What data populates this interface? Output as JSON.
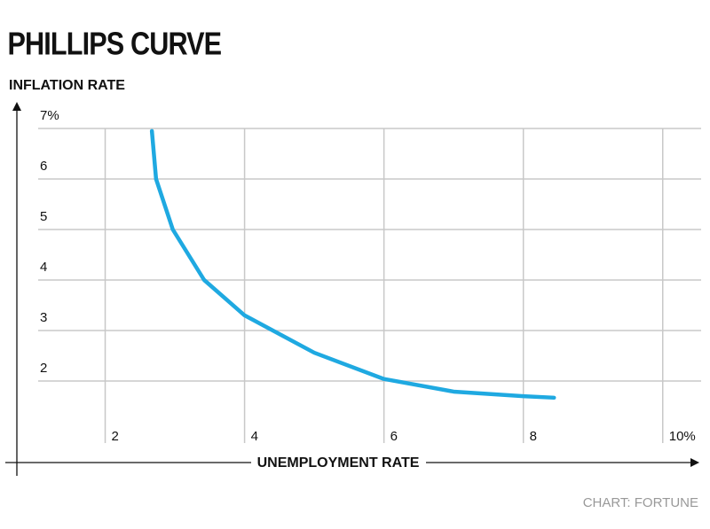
{
  "chart_data": {
    "type": "line",
    "title": "PHILLIPS CURVE",
    "y_label": "INFLATION RATE",
    "x_label": "UNEMPLOYMENT RATE",
    "source": "CHART: FORTUNE",
    "x": [
      2.67,
      2.73,
      2.97,
      3.42,
      4,
      5,
      6,
      7,
      8,
      8.44
    ],
    "series": [
      {
        "name": "Phillips curve",
        "color": "#1fa9e1",
        "values": [
          6.95,
          6,
          5,
          4,
          3.3,
          2.56,
          2.04,
          1.79,
          1.7,
          1.67
        ]
      }
    ],
    "xlim": [
      1,
      10.5
    ],
    "ylim": [
      1,
      7
    ],
    "xticks": [
      2,
      4,
      6,
      8,
      {
        "value": 10,
        "label": "10%"
      }
    ],
    "yticks": [
      2,
      3,
      4,
      5,
      6,
      {
        "value": 7,
        "label": "7%"
      }
    ],
    "grid": true
  }
}
